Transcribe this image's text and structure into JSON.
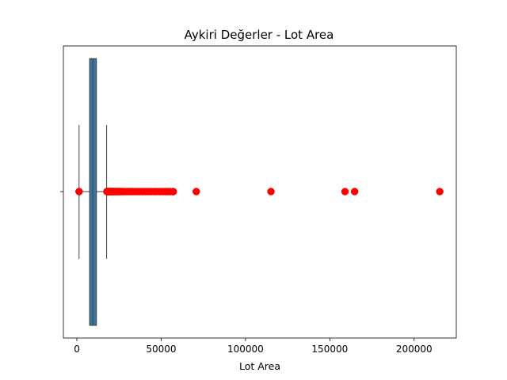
{
  "chart_data": {
    "type": "box",
    "orientation": "horizontal",
    "title": "Aykiri Değerler - Lot Area",
    "xlabel": "Lot Area",
    "ylabel": "",
    "xlim": [
      -8000,
      225000
    ],
    "xticks": [
      0,
      50000,
      100000,
      150000,
      200000
    ],
    "xtick_labels": [
      "0",
      "50000",
      "100000",
      "150000",
      "200000"
    ],
    "box": {
      "q1": 7550,
      "median": 9480,
      "q3": 11600,
      "whisker_low": 1300,
      "whisker_high": 17650
    },
    "outliers": [
      1300,
      17800,
      18000,
      18200,
      18400,
      18650,
      18900,
      19150,
      19400,
      19650,
      19900,
      20200,
      20500,
      20800,
      21100,
      21450,
      21800,
      22150,
      22500,
      22900,
      23300,
      23700,
      24100,
      24600,
      25100,
      25600,
      26200,
      26800,
      27700,
      28700,
      29800,
      31000,
      32000,
      33200,
      34600,
      36000,
      37500,
      39100,
      40800,
      42500,
      44200,
      46000,
      47500,
      49400,
      51000,
      52400,
      53600,
      55000,
      56700,
      57200,
      70800,
      115100,
      159000,
      164700,
      215200
    ],
    "colors": {
      "box_fill": "#3a75a4",
      "box_edge": "#3f3f3f",
      "outlier": "#ff0000"
    },
    "grid": false
  }
}
